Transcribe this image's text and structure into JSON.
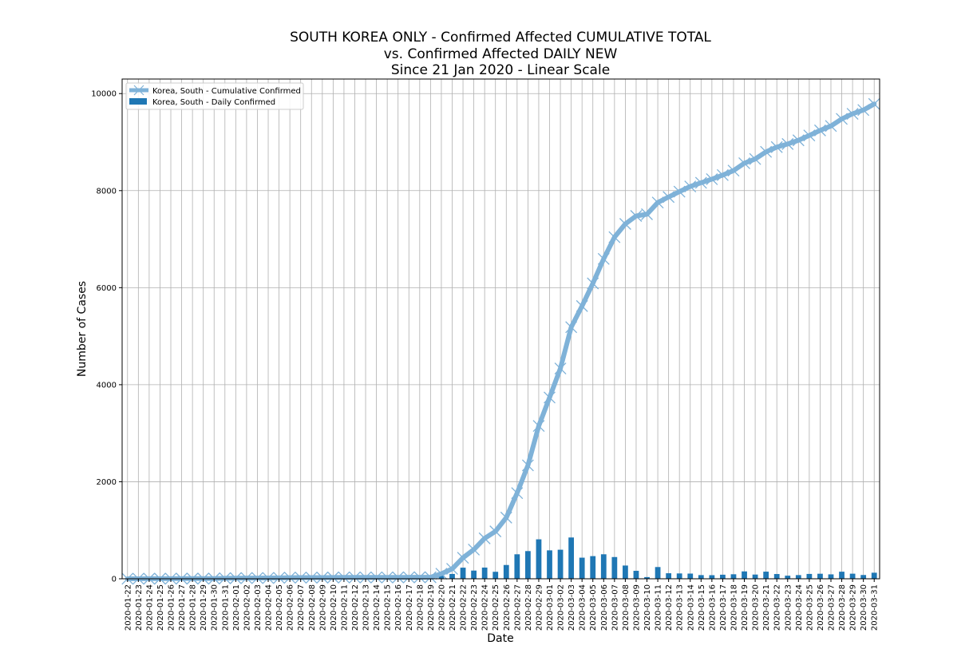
{
  "chart_data": {
    "type": "line",
    "title_lines": [
      "SOUTH KOREA ONLY - Confirmed Affected CUMULATIVE TOTAL",
      "vs. Confirmed Affected DAILY NEW",
      "Since 21 Jan 2020 - Linear Scale"
    ],
    "xlabel": "Date",
    "ylabel": "Number of Cases",
    "ylim": [
      0,
      10300
    ],
    "yticks": [
      0,
      2000,
      4000,
      6000,
      8000,
      10000
    ],
    "grid": true,
    "legend_position": "top-left",
    "categories": [
      "2020-01-22",
      "2020-01-23",
      "2020-01-24",
      "2020-01-25",
      "2020-01-26",
      "2020-01-27",
      "2020-01-28",
      "2020-01-29",
      "2020-01-30",
      "2020-01-31",
      "2020-02-01",
      "2020-02-02",
      "2020-02-03",
      "2020-02-04",
      "2020-02-05",
      "2020-02-06",
      "2020-02-07",
      "2020-02-08",
      "2020-02-09",
      "2020-02-10",
      "2020-02-11",
      "2020-02-12",
      "2020-02-13",
      "2020-02-14",
      "2020-02-15",
      "2020-02-16",
      "2020-02-17",
      "2020-02-18",
      "2020-02-19",
      "2020-02-20",
      "2020-02-21",
      "2020-02-22",
      "2020-02-23",
      "2020-02-24",
      "2020-02-25",
      "2020-02-26",
      "2020-02-27",
      "2020-02-28",
      "2020-02-29",
      "2020-03-01",
      "2020-03-02",
      "2020-03-03",
      "2020-03-04",
      "2020-03-05",
      "2020-03-06",
      "2020-03-07",
      "2020-03-08",
      "2020-03-09",
      "2020-03-10",
      "2020-03-11",
      "2020-03-12",
      "2020-03-13",
      "2020-03-14",
      "2020-03-15",
      "2020-03-16",
      "2020-03-17",
      "2020-03-18",
      "2020-03-19",
      "2020-03-20",
      "2020-03-21",
      "2020-03-22",
      "2020-03-23",
      "2020-03-24",
      "2020-03-25",
      "2020-03-26",
      "2020-03-27",
      "2020-03-28",
      "2020-03-29",
      "2020-03-30",
      "2020-03-31"
    ],
    "series": [
      {
        "name": "Korea, South - Cumulative Confirmed",
        "kind": "line",
        "marker": "x",
        "color": "#7fb2d8",
        "values": [
          1,
          1,
          2,
          2,
          3,
          4,
          4,
          4,
          4,
          11,
          12,
          15,
          15,
          16,
          19,
          23,
          24,
          24,
          25,
          27,
          28,
          28,
          28,
          28,
          28,
          29,
          30,
          31,
          31,
          104,
          204,
          433,
          602,
          833,
          977,
          1261,
          1766,
          2337,
          3150,
          3736,
          4335,
          5186,
          5621,
          6088,
          6593,
          7041,
          7314,
          7478,
          7513,
          7755,
          7869,
          7979,
          8086,
          8162,
          8236,
          8320,
          8413,
          8565,
          8652,
          8799,
          8897,
          8961,
          9037,
          9137,
          9241,
          9332,
          9478,
          9583,
          9661,
          9786
        ]
      },
      {
        "name": "Korea, South - Daily Confirmed",
        "kind": "bar",
        "color": "#1f77b4",
        "values": [
          0,
          0,
          1,
          0,
          1,
          1,
          0,
          0,
          0,
          7,
          1,
          3,
          0,
          1,
          3,
          4,
          1,
          0,
          1,
          2,
          1,
          0,
          0,
          0,
          0,
          1,
          1,
          1,
          0,
          73,
          100,
          229,
          169,
          231,
          144,
          284,
          505,
          571,
          813,
          586,
          599,
          851,
          435,
          467,
          505,
          448,
          273,
          164,
          35,
          242,
          114,
          110,
          107,
          76,
          74,
          84,
          93,
          152,
          87,
          147,
          98,
          64,
          76,
          100,
          104,
          91,
          146,
          105,
          78,
          125
        ]
      }
    ]
  }
}
